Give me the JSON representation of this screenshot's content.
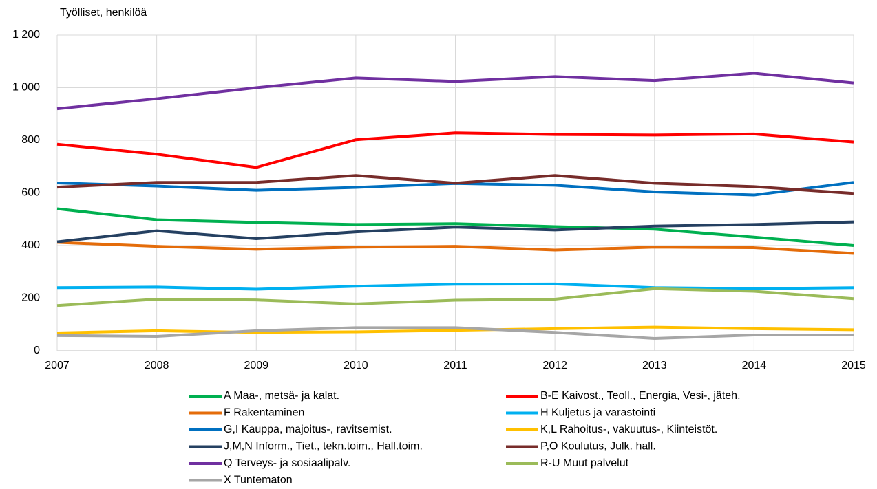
{
  "chart_data": {
    "type": "line",
    "ylabel": "Työlliset, henkilöä",
    "x": [
      2007,
      2008,
      2009,
      2010,
      2011,
      2012,
      2013,
      2014,
      2015
    ],
    "xlim": [
      2007,
      2015
    ],
    "xticks": [
      2007,
      2008,
      2009,
      2010,
      2011,
      2012,
      2013,
      2014,
      2015
    ],
    "ylim": [
      0,
      1200
    ],
    "yticks": [
      0,
      200,
      400,
      600,
      800,
      {
        "value": 1000,
        "label": "1 000"
      },
      {
        "value": 1200,
        "label": "1 200"
      }
    ],
    "grid": true,
    "legend": "bottom",
    "series": [
      {
        "name": "A Maa-, metsä- ja kalat.",
        "color": "#00b050",
        "values": [
          540,
          498,
          488,
          480,
          483,
          472,
          462,
          432,
          400
        ]
      },
      {
        "name": "B-E Kaivost., Teoll., Energia, Vesi-, jäteh.",
        "color": "#ff0000",
        "values": [
          785,
          747,
          697,
          802,
          828,
          822,
          820,
          824,
          793
        ]
      },
      {
        "name": "F Rakentaminen",
        "color": "#e46c0a",
        "values": [
          412,
          397,
          386,
          394,
          397,
          383,
          394,
          392,
          370
        ]
      },
      {
        "name": "H Kuljetus ja varastointi",
        "color": "#00b0f0",
        "values": [
          240,
          242,
          234,
          245,
          253,
          254,
          240,
          236,
          240
        ]
      },
      {
        "name": "G,I Kauppa, majoitus-, ravitsemist.",
        "color": "#0070c0",
        "values": [
          638,
          626,
          610,
          621,
          636,
          629,
          604,
          592,
          640
        ]
      },
      {
        "name": "K,L Rahoitus-, vakuutus-, Kiinteistöt.",
        "color": "#ffc000",
        "values": [
          68,
          76,
          70,
          72,
          78,
          84,
          90,
          84,
          80
        ]
      },
      {
        "name": "J,M,N Inform., Tiet., tekn.toim., Hall.toim.",
        "color": "#254061",
        "values": [
          414,
          456,
          426,
          452,
          470,
          459,
          474,
          480,
          490
        ]
      },
      {
        "name": "P,O Koulutus, Julk. hall.",
        "color": "#772c2a",
        "values": [
          622,
          640,
          640,
          666,
          637,
          666,
          637,
          624,
          598
        ]
      },
      {
        "name": "Q Terveys- ja sosiaalipalv.",
        "color": "#7030a0",
        "values": [
          920,
          958,
          1000,
          1037,
          1024,
          1042,
          1027,
          1055,
          1018
        ]
      },
      {
        "name": "R-U Muut palvelut",
        "color": "#9bbb59",
        "values": [
          172,
          196,
          193,
          178,
          192,
          196,
          236,
          226,
          198
        ]
      },
      {
        "name": "X Tuntematon",
        "color": "#a6a6a6",
        "values": [
          58,
          55,
          76,
          88,
          88,
          70,
          47,
          60,
          60
        ]
      }
    ]
  }
}
